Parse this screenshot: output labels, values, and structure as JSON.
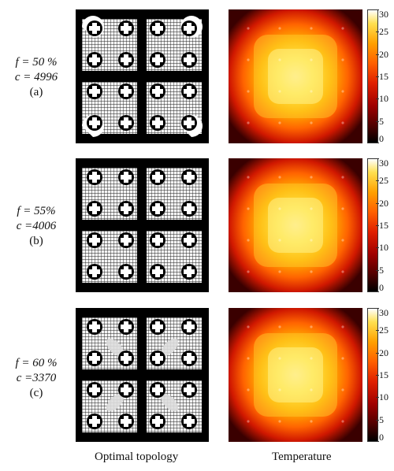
{
  "rows": [
    {
      "f_text": "f = 50 %",
      "c_text": "c = 4996",
      "panel": "(a)",
      "seed": 1,
      "swirl": "corners"
    },
    {
      "f_text": "f = 55%",
      "c_text": "c =4006",
      "panel": "(b)",
      "seed": 2,
      "swirl": "none"
    },
    {
      "f_text": "f = 60 %",
      "c_text": "c =3370",
      "panel": "(c)",
      "seed": 3,
      "swirl": "diagonal"
    }
  ],
  "colorbar": {
    "min": 0,
    "max": 30,
    "ticks": [
      "0",
      "5",
      "10",
      "15",
      "20",
      "25",
      "30"
    ]
  },
  "captions": {
    "left": "Optimal topology",
    "right": "Temperature"
  },
  "colors": {
    "hot_low": "#000000",
    "hot_mid": "#e02000",
    "hot_high": "#ffffff"
  }
}
